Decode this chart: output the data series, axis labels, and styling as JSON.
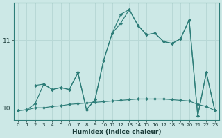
{
  "background_color": "#cce8e6",
  "line_color": "#2d7d78",
  "grid_color": "#b8d8d6",
  "xlim": [
    -0.5,
    23.5
  ],
  "ylim": [
    9.82,
    11.55
  ],
  "yticks": [
    10,
    11
  ],
  "xticks": [
    0,
    1,
    2,
    3,
    4,
    5,
    6,
    7,
    8,
    9,
    10,
    11,
    12,
    13,
    14,
    15,
    16,
    17,
    18,
    19,
    20,
    21,
    22,
    23
  ],
  "xlabel": "Humidex (Indice chaleur)",
  "line1_x": [
    0,
    1,
    2,
    3,
    4,
    5,
    6,
    7,
    8,
    9,
    10,
    11,
    12,
    13,
    14,
    15,
    16,
    17,
    18,
    19,
    20,
    21,
    22,
    23
  ],
  "line1_y": [
    9.96,
    9.97,
    10.0,
    10.0,
    10.02,
    10.03,
    10.05,
    10.06,
    10.07,
    10.08,
    10.09,
    10.1,
    10.11,
    10.12,
    10.13,
    10.13,
    10.13,
    10.13,
    10.12,
    10.11,
    10.1,
    10.05,
    10.02,
    9.96
  ],
  "line2_x": [
    0,
    1,
    2,
    3,
    4,
    5,
    6,
    7,
    8,
    9,
    10,
    11,
    12,
    13,
    14,
    15,
    16,
    17,
    18,
    19,
    20,
    21,
    22,
    23
  ],
  "line2_y": [
    9.96,
    9.97,
    10.06,
    10.35,
    10.27,
    10.3,
    10.27,
    10.52,
    9.97,
    10.12,
    10.7,
    11.1,
    11.38,
    11.45,
    11.22,
    11.08,
    11.1,
    10.98,
    10.95,
    11.02,
    11.3,
    9.88,
    10.52,
    9.96
  ],
  "line3_x": [
    2,
    3,
    4,
    5,
    6,
    7,
    8,
    9,
    10,
    11,
    12,
    13,
    14,
    15,
    16,
    17,
    18,
    19,
    20,
    21,
    22,
    23
  ],
  "line3_y": [
    10.33,
    10.35,
    10.27,
    10.3,
    10.27,
    10.52,
    9.97,
    10.12,
    10.7,
    11.1,
    11.25,
    11.45,
    11.22,
    11.08,
    11.1,
    10.98,
    10.95,
    11.02,
    11.3,
    9.88,
    10.52,
    9.96
  ]
}
